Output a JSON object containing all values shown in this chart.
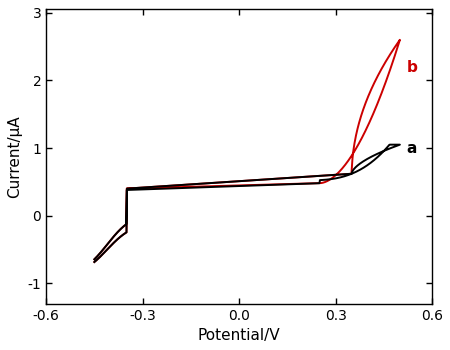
{
  "title": "",
  "xlabel": "Potential/V",
  "ylabel": "Current/μA",
  "xlim": [
    -0.58,
    0.6
  ],
  "ylim": [
    -1.3,
    3.05
  ],
  "xticks": [
    -0.6,
    -0.3,
    0.0,
    0.3,
    0.6
  ],
  "yticks": [
    -1,
    0,
    1,
    2,
    3
  ],
  "curve_a_color": "#000000",
  "curve_b_color": "#cc0000",
  "label_a": "a",
  "label_b": "b",
  "background_color": "#ffffff",
  "linewidth": 1.4
}
